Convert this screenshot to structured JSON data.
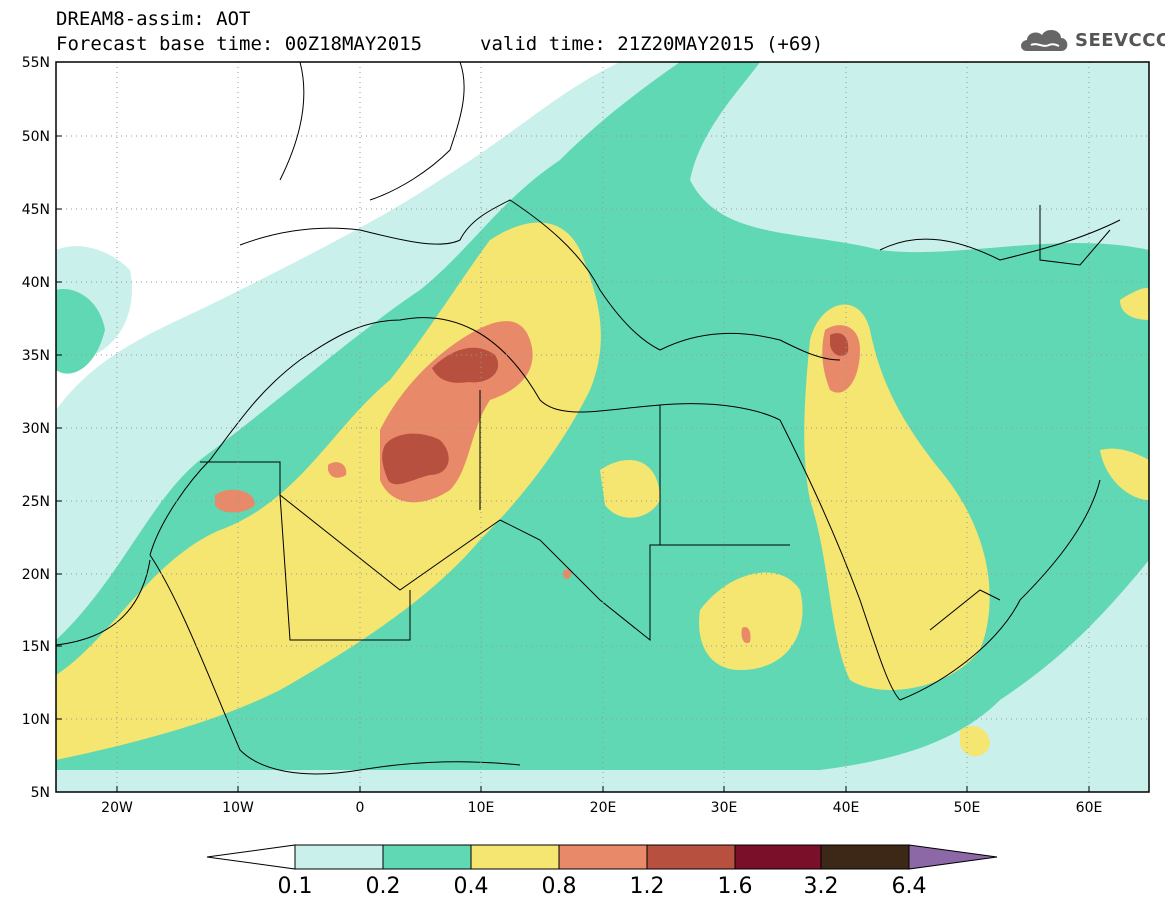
{
  "header": {
    "title_line1": "DREAM8-assim: AOT",
    "title_line2": "Forecast base time: 00Z18MAY2015",
    "valid_time": "valid time: 21Z20MAY2015 (+69)",
    "logo_text": "SEEVCCC"
  },
  "axes": {
    "lat_labels": [
      "55N",
      "50N",
      "45N",
      "40N",
      "35N",
      "30N",
      "25N",
      "20N",
      "15N",
      "10N",
      "5N"
    ],
    "lon_labels": [
      "20W",
      "10W",
      "0",
      "10E",
      "20E",
      "30E",
      "40E",
      "50E",
      "60E"
    ],
    "lat_range": [
      5,
      55
    ],
    "lon_range": [
      -25,
      65
    ]
  },
  "colorbar": {
    "levels": [
      "0.1",
      "0.2",
      "0.4",
      "0.8",
      "1.2",
      "1.6",
      "3.2",
      "6.4"
    ],
    "colors": [
      "#ffffff",
      "#c9f0ea",
      "#60d8b4",
      "#f5e571",
      "#e8896a",
      "#b8503f",
      "#7a0f2a",
      "#3d2818",
      "#8d68a6"
    ]
  },
  "palette": {
    "land": "#ffffff",
    "lvl1": "#c9f0ea",
    "lvl2": "#60d8b4",
    "lvl3": "#f5e571",
    "lvl4": "#e8896a",
    "lvl5": "#b8503f",
    "border": "#000000"
  }
}
